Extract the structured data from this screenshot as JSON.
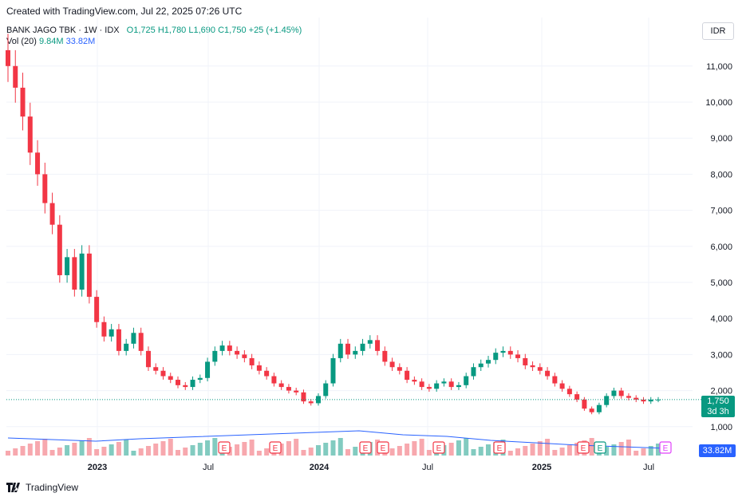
{
  "header": {
    "created_text": "Created with TradingView.com, Jul 22, 2025 07:26 UTC"
  },
  "legend": {
    "symbol": "BANK JAGO TBK · 1W · IDX",
    "open": "O1,725",
    "high": "H1,780",
    "low": "L1,690",
    "close": "C1,750",
    "change": "+25 (+1.45%)",
    "vol_label": "Vol (20)",
    "vol_value": "9.84M",
    "vol_ma": "33.82M"
  },
  "currency": "IDR",
  "last_price": {
    "price": "1,750",
    "countdown": "3d 3h"
  },
  "volume_ma_tag": "33.82M",
  "footer": {
    "brand": "TradingView"
  },
  "colors": {
    "up": "#089981",
    "down": "#f23645",
    "vol_up": "#82cbc0",
    "vol_down": "#f7a8ae",
    "ma": "#2962ff",
    "grid": "#f0f3fa"
  },
  "chart_data": {
    "type": "candlestick",
    "y_axis": {
      "ticks": [
        "11,000",
        "10,000",
        "9,000",
        "8,000",
        "7,000",
        "6,000",
        "5,000",
        "4,000",
        "3,000",
        "2,000",
        "1,000"
      ],
      "tick_values": [
        11000,
        10000,
        9000,
        8000,
        7000,
        6000,
        5000,
        4000,
        3000,
        2000,
        1000
      ],
      "range": [
        0,
        12000
      ]
    },
    "x_axis": {
      "labels": [
        "2023",
        "Jul",
        "2024",
        "Jul",
        "2025",
        "Jul"
      ]
    },
    "earnings_markers": [
      "E",
      "E",
      "E",
      "E",
      "E",
      "E",
      "E",
      "E",
      "E"
    ],
    "close_series": [
      11000,
      10400,
      9600,
      8600,
      8000,
      7200,
      6600,
      5200,
      5700,
      4800,
      5800,
      4600,
      3900,
      3500,
      3700,
      3100,
      3300,
      3600,
      3100,
      2650,
      2550,
      2400,
      2300,
      2150,
      2100,
      2300,
      2350,
      2800,
      3100,
      3250,
      3100,
      3000,
      2900,
      2700,
      2550,
      2400,
      2200,
      2100,
      2000,
      1950,
      1700,
      1650,
      1850,
      2200,
      2900,
      3300,
      3000,
      3100,
      3300,
      3400,
      3100,
      2800,
      2650,
      2550,
      2300,
      2250,
      2100,
      2050,
      2200,
      2250,
      2100,
      2150,
      2400,
      2650,
      2750,
      2850,
      3050,
      3100,
      3000,
      2900,
      2700,
      2650,
      2550,
      2400,
      2200,
      2050,
      1900,
      1750,
      1500,
      1400,
      1600,
      1850,
      2000,
      1850,
      1800,
      1750,
      1700,
      1750,
      1750
    ],
    "volume_ma": 33.82,
    "last_close": 1750
  }
}
